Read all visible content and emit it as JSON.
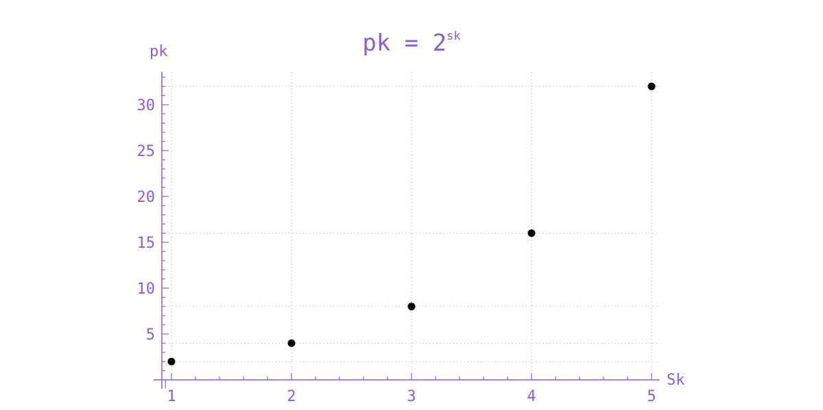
{
  "chart_data": {
    "type": "scatter",
    "title": {
      "base": "pk = 2",
      "superscript": "sk"
    },
    "xlabel": "Sk",
    "ylabel": "pk",
    "x": [
      1,
      2,
      3,
      4,
      5
    ],
    "y": [
      2,
      4,
      8,
      16,
      32
    ],
    "xlim": [
      0.93,
      5.1
    ],
    "ylim": [
      0,
      34
    ],
    "xticks": [
      1,
      2,
      3,
      4,
      5
    ],
    "yticks": [
      5,
      10,
      15,
      20,
      25,
      30
    ],
    "x_tick_labels": [
      "1",
      "2",
      "3",
      "4",
      "5"
    ],
    "y_tick_labels": [
      "5",
      "10",
      "15",
      "20",
      "25",
      "30"
    ],
    "grid": true,
    "colors": {
      "axis": "#8a5ce6",
      "grid": "#c9c5f0",
      "points": "#000000"
    }
  }
}
